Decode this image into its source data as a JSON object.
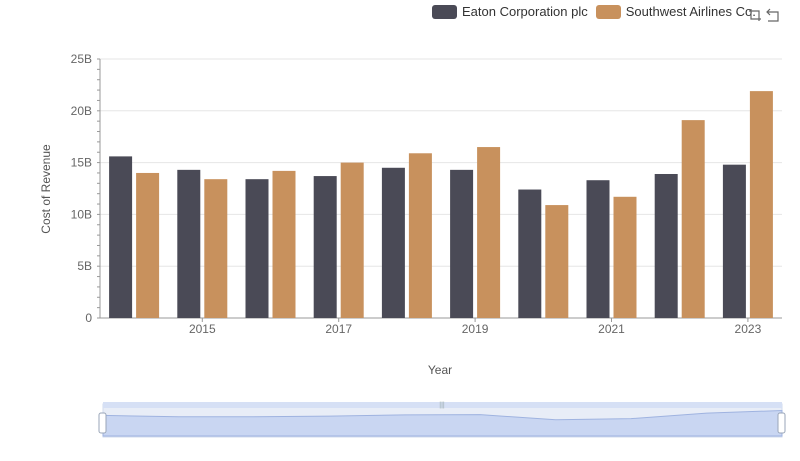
{
  "legend": {
    "items": [
      {
        "label": "Eaton Corporation plc",
        "color": "#4a4a56"
      },
      {
        "label": "Southwest Airlines Co.",
        "color": "#c8915d"
      }
    ]
  },
  "toolbox": {
    "icons": [
      "zoom-icon",
      "restore-icon"
    ]
  },
  "chart_data": {
    "type": "bar",
    "categories": [
      "2014",
      "2015",
      "2016",
      "2017",
      "2018",
      "2019",
      "2020",
      "2021",
      "2022",
      "2023"
    ],
    "x_tick_labels": [
      "2015",
      "2017",
      "2019",
      "2021",
      "2023"
    ],
    "series": [
      {
        "name": "Eaton Corporation plc",
        "color": "#4a4a56",
        "values": [
          15.6,
          14.3,
          13.4,
          13.7,
          14.5,
          14.3,
          12.4,
          13.3,
          13.9,
          14.8
        ]
      },
      {
        "name": "Southwest Airlines Co.",
        "color": "#c8915d",
        "values": [
          14.0,
          13.4,
          14.2,
          15.0,
          15.9,
          16.5,
          10.9,
          11.7,
          19.1,
          21.9
        ]
      }
    ],
    "xlabel": "Year",
    "ylabel": "Cost of Revenue",
    "ylim": [
      0,
      25
    ],
    "y_ticks": [
      "0",
      "5B",
      "10B",
      "15B",
      "20B",
      "25B"
    ],
    "grid": true,
    "legend_position": "top-right",
    "has_zoom_slider": true
  }
}
